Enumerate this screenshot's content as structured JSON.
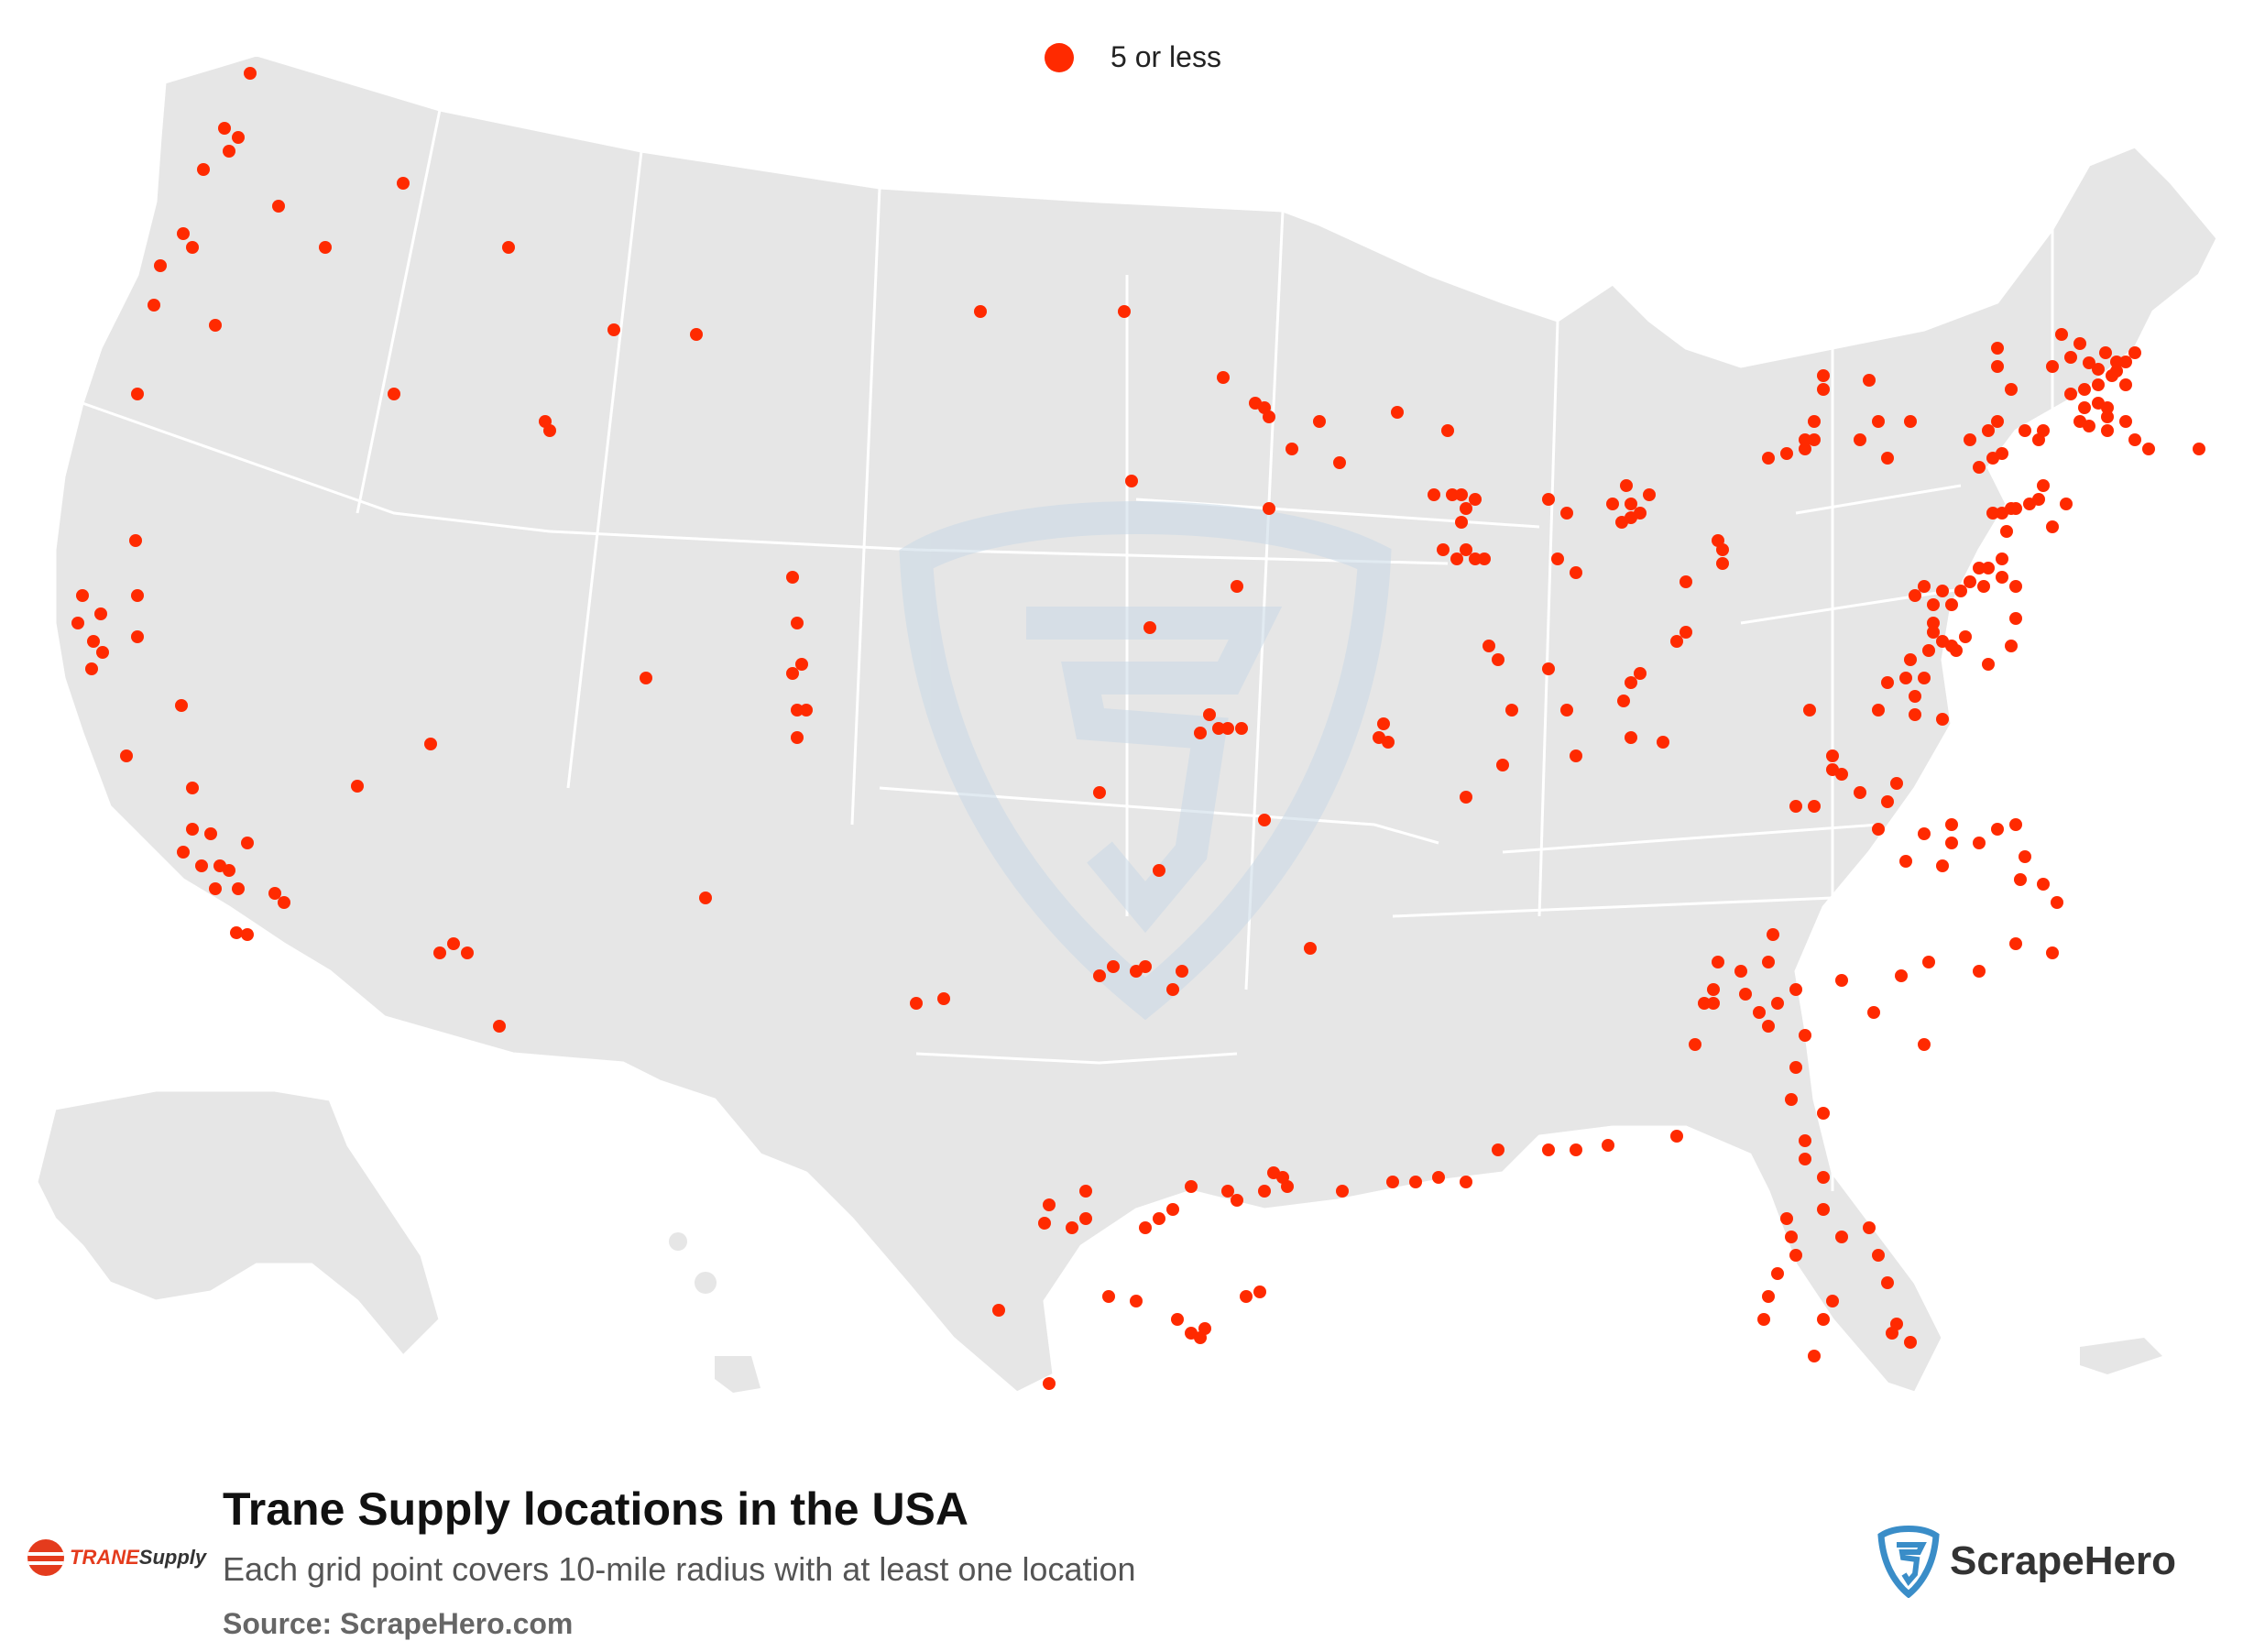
{
  "legend": {
    "label": "5 or less",
    "color": "#ff2a00"
  },
  "footer": {
    "title": "Trane Supply locations in the USA",
    "subtitle": "Each grid point covers 10-mile radius with at least one location",
    "source": "Source: ScrapeHero.com"
  },
  "brand": {
    "part1": "TRANE",
    "part2": "Supply"
  },
  "provider": {
    "name": "ScrapeHero"
  },
  "colors": {
    "land": "#e6e6e6",
    "border": "#ffffff",
    "marker": "#ff2a00",
    "watermark": "#c9d9e6"
  },
  "icons": {
    "watermark": "scrapehero-shield-icon",
    "brand": "trane-logo",
    "provider": "scrapehero-shield-icon"
  }
}
